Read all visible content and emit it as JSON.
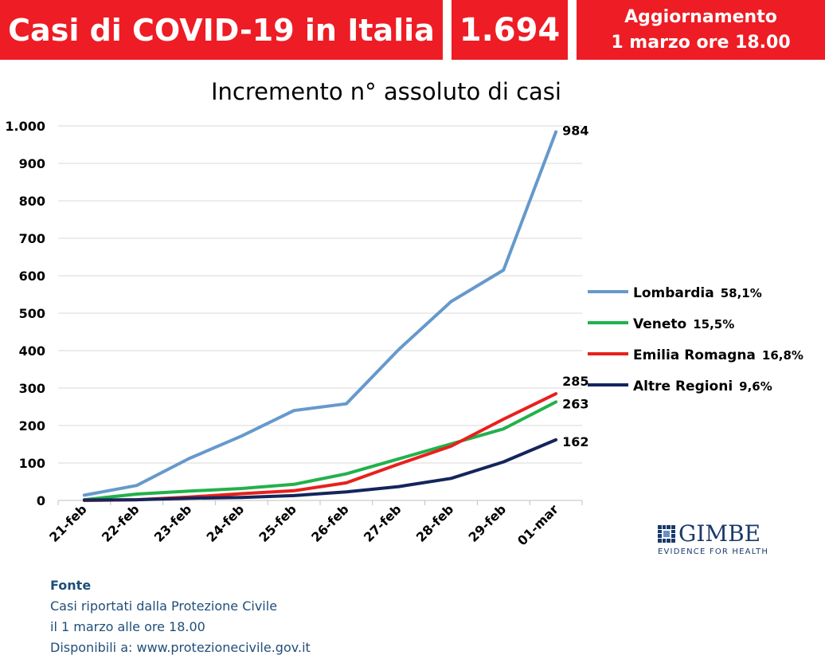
{
  "header": {
    "title": "Casi di COVID-19 in Italia",
    "total": "1.694",
    "update_line1": "Aggiornamento",
    "update_line2": "1 marzo ore 18.00"
  },
  "chart_data": {
    "type": "line",
    "title": "Incremento n° assoluto di casi",
    "categories": [
      "21-feb",
      "22-feb",
      "23-feb",
      "24-feb",
      "25-feb",
      "26-feb",
      "27-feb",
      "28-feb",
      "29-feb",
      "01-mar"
    ],
    "ylim": [
      0,
      1000
    ],
    "yticks": [
      0,
      100,
      200,
      300,
      400,
      500,
      600,
      700,
      800,
      900,
      1000
    ],
    "ytick_labels": [
      "0",
      "100",
      "200",
      "300",
      "400",
      "500",
      "600",
      "700",
      "800",
      "900",
      "1.000"
    ],
    "grid": true,
    "legend_position": "right",
    "series": [
      {
        "name": "Lombardia",
        "pct": "58,1%",
        "color": "#6699cc",
        "values": [
          14,
          40,
          112,
          172,
          240,
          258,
          403,
          531,
          615,
          984
        ],
        "end_label": "984"
      },
      {
        "name": "Veneto",
        "pct": "15,5%",
        "color": "#22b14c",
        "values": [
          2,
          17,
          25,
          32,
          43,
          71,
          111,
          151,
          191,
          263
        ],
        "end_label": "263"
      },
      {
        "name": "Emilia Romagna",
        "pct": "16,8%",
        "color": "#e8201c",
        "values": [
          0,
          2,
          9,
          18,
          26,
          47,
          97,
          145,
          217,
          285
        ],
        "end_label": "285"
      },
      {
        "name": "Altre Regioni",
        "pct": "9,6%",
        "color": "#14255c",
        "values": [
          1,
          2,
          6,
          8,
          13,
          23,
          37,
          59,
          103,
          162
        ],
        "end_label": "162"
      }
    ]
  },
  "source": {
    "heading": "Fonte",
    "line1": "Casi riportati dalla Protezione Civile",
    "line2": "il 1 marzo alle ore 18.00",
    "line3": "Disponibili a: www.protezionecivile.gov.it"
  },
  "logo": {
    "name": "GIMBE",
    "tagline": "EVIDENCE FOR HEALTH"
  }
}
